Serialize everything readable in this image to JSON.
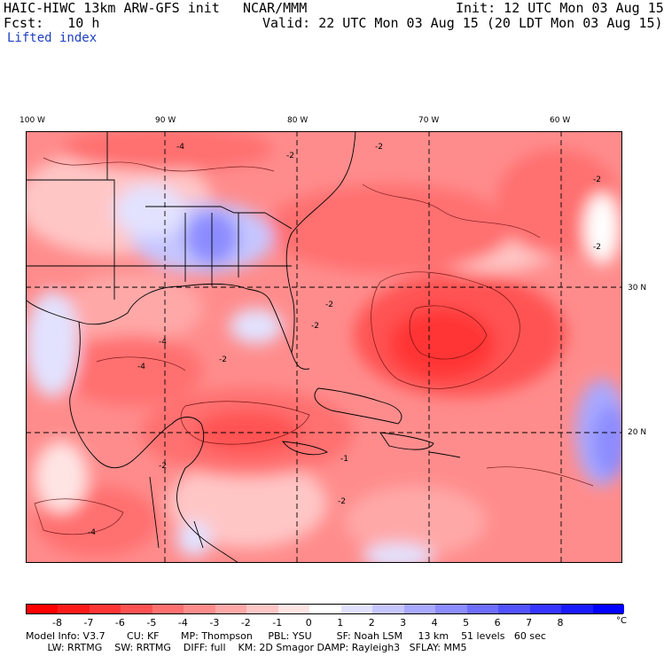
{
  "header": {
    "model": "HAIC-HIWC 13km ARW-GFS init",
    "org": "NCAR/MMM",
    "init": "Init: 12 UTC Mon 03 Aug 15",
    "fcst": "Fcst:   10 h",
    "valid": "Valid: 22 UTC Mon 03 Aug 15 (20 LDT Mon 03 Aug 15)",
    "field": "Lifted index"
  },
  "map": {
    "lon_labels": [
      "100 W",
      "90 W",
      "80 W",
      "70 W",
      "60 W"
    ],
    "lat_labels": [
      "30 N",
      "20 N"
    ],
    "contour_labels": [
      "-2",
      "-2",
      "-2",
      "-4",
      "-2",
      "-2",
      "-4",
      "-2",
      "-4",
      "-1",
      "-2",
      "-2",
      "-4",
      "-2"
    ]
  },
  "colorbar": {
    "ticks": [
      "-8",
      "-7",
      "-6",
      "-5",
      "-4",
      "-3",
      "-2",
      "-1",
      "0",
      "1",
      "2",
      "3",
      "4",
      "5",
      "6",
      "7",
      "8"
    ],
    "unit": "°C",
    "colors": [
      "#ff0000",
      "#ff1a1a",
      "#ff3535",
      "#ff5252",
      "#ff7070",
      "#ff8c8c",
      "#ffa8a8",
      "#ffc6c6",
      "#ffe4e4",
      "#ffffff",
      "#e2e2ff",
      "#c6c6ff",
      "#a8a8ff",
      "#8c8cff",
      "#6e6eff",
      "#5252ff",
      "#3535ff",
      "#1a1aff",
      "#0000ff"
    ]
  },
  "footer": {
    "line1": "Model Info: V3.7       CU: KF       MP: Thompson     PBL: YSU        SF: Noah LSM     13 km    51 levels   60 sec",
    "line2": "       LW: RRTMG    SW: RRTMG    DIFF: full    KM: 2D Smagor DAMP: Rayleigh3   SFLAY: MM5"
  }
}
